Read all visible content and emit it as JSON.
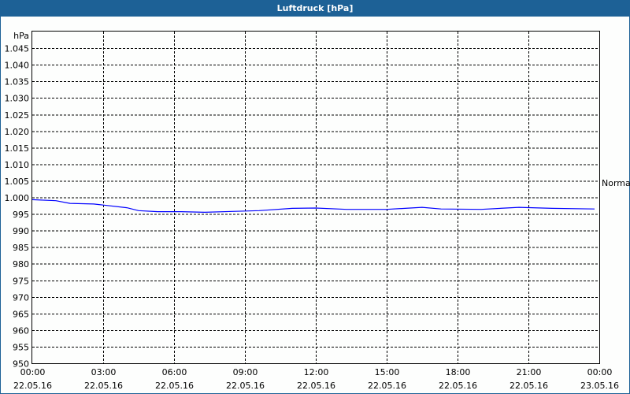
{
  "window": {
    "title": "Luftdruck [hPa]"
  },
  "chart_data": {
    "type": "line",
    "title": "Luftdruck [hPa]",
    "ylabel": "hPa",
    "ylim": [
      950,
      1050
    ],
    "yticks": [
      950,
      955,
      960,
      965,
      970,
      975,
      980,
      985,
      990,
      995,
      1000,
      1005,
      1010,
      1015,
      1020,
      1025,
      1030,
      1035,
      1040,
      1045
    ],
    "ytick_labels": [
      "950",
      "955",
      "960",
      "965",
      "970",
      "975",
      "980",
      "985",
      "990",
      "995",
      "1.000",
      "1.005",
      "1.010",
      "1.015",
      "1.020",
      "1.025",
      "1.030",
      "1.035",
      "1.040",
      "1.045"
    ],
    "xlim_hours": [
      0,
      24
    ],
    "xticks": [
      {
        "time": "00:00",
        "date": "22.05.16"
      },
      {
        "time": "03:00",
        "date": "22.05.16"
      },
      {
        "time": "06:00",
        "date": "22.05.16"
      },
      {
        "time": "09:00",
        "date": "22.05.16"
      },
      {
        "time": "12:00",
        "date": "22.05.16"
      },
      {
        "time": "15:00",
        "date": "22.05.16"
      },
      {
        "time": "18:00",
        "date": "22.05.16"
      },
      {
        "time": "21:00",
        "date": "22.05.16"
      },
      {
        "time": "00:00",
        "date": "23.05.16"
      }
    ],
    "grid": true,
    "legend_position": "right",
    "series": [
      {
        "name": "Normal",
        "color": "#0000ff",
        "x_hours": [
          0,
          1,
          1.6,
          2.6,
          3,
          4,
          4.5,
          5.3,
          6.3,
          7.3,
          8.6,
          9.6,
          11,
          12,
          13.3,
          15,
          16.5,
          17.3,
          19,
          20.6,
          22,
          23.8
        ],
        "values": [
          999.3,
          999,
          998.2,
          998,
          997.7,
          996.9,
          996,
          995.7,
          995.7,
          995.5,
          995.8,
          996,
          996.7,
          996.8,
          996.4,
          996.4,
          997,
          996.5,
          996.4,
          997,
          996.7,
          996.5
        ]
      }
    ]
  }
}
